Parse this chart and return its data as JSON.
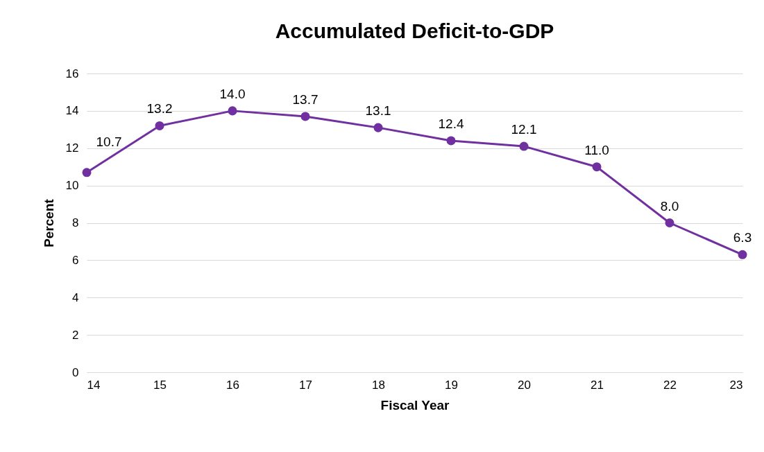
{
  "chart_data": {
    "type": "line",
    "title": "Accumulated Deficit-to-GDP",
    "xlabel": "Fiscal Year",
    "ylabel": "Percent",
    "x": [
      14,
      15,
      16,
      17,
      18,
      19,
      20,
      21,
      22,
      23
    ],
    "series": [
      {
        "color": "#7030a0",
        "values": [
          10.7,
          13.2,
          14.0,
          13.7,
          13.1,
          12.4,
          12.1,
          11.0,
          8.0,
          6.3
        ],
        "value_labels": [
          "10.7",
          "13.2",
          "14.0",
          "13.7",
          "13.1",
          "12.4",
          "12.1",
          "11.0",
          "8.0",
          "6.3"
        ]
      }
    ],
    "xlim": [
      14,
      23
    ],
    "xticks": [
      14,
      15,
      16,
      17,
      18,
      19,
      20,
      21,
      22,
      23
    ],
    "ylim": [
      0,
      16
    ],
    "yticks": [
      0,
      2,
      4,
      6,
      8,
      10,
      12,
      14,
      16
    ],
    "grid": "y",
    "marker": "circle",
    "line_style": "solid"
  }
}
